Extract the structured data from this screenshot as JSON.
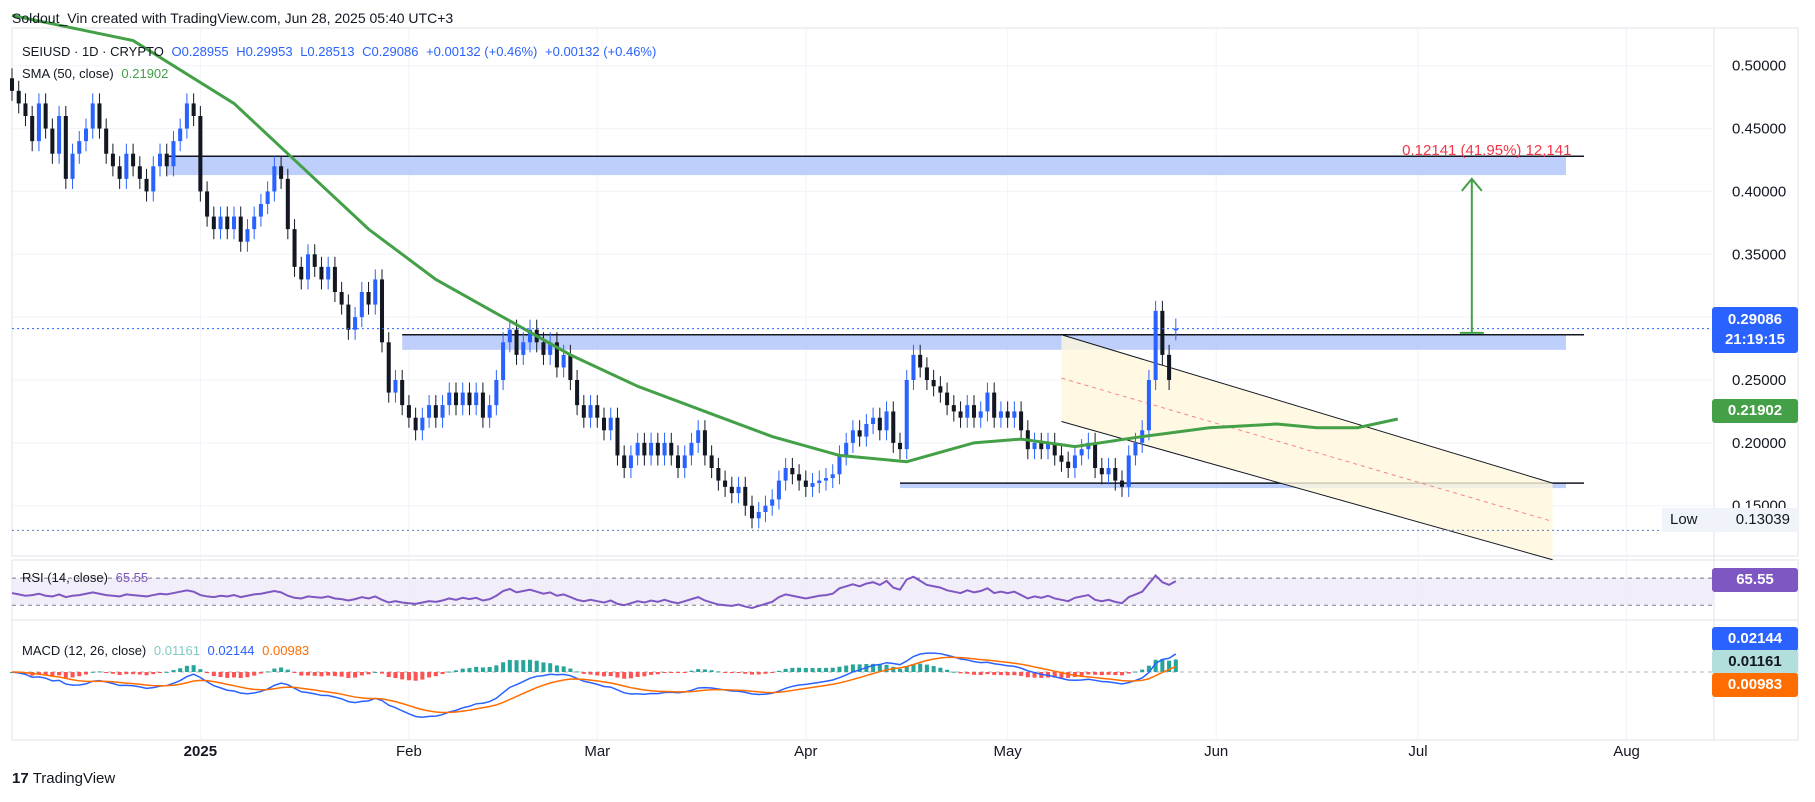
{
  "header": {
    "caption": "Soldout_Vin created with TradingView.com, Jun 28, 2025 05:40 UTC+3"
  },
  "symbol": {
    "title": "SEIUSD · 1D · CRYPTO",
    "open": "O0.28955",
    "high": "H0.29953",
    "low": "L0.28513",
    "close": "C0.29086",
    "change1": "+0.00132 (+0.46%)",
    "change2": "+0.00132 (+0.46%)"
  },
  "sma_legend": {
    "label": "SMA (50, close)",
    "value": "0.21902"
  },
  "rsi_legend": {
    "label": "RSI (14, close)",
    "value": "65.55"
  },
  "macd_legend": {
    "label": "MACD (12, 26, close)",
    "v1": "0.01161",
    "v2": "0.02144",
    "v3": "0.00983"
  },
  "price_badges": {
    "last": "0.29086",
    "countdown": "21:19:15",
    "sma": "0.21902",
    "low_label": "Low",
    "low_value": "0.13039"
  },
  "rsi_badge": "65.55",
  "macd_badges": {
    "macd": "0.02144",
    "hist": "0.01161",
    "signal": "0.00983"
  },
  "measure_label": "0.12141 (41.95%) 12,141",
  "brand": "TradingView",
  "colors": {
    "up": "#2962ff",
    "down": "#131722",
    "sma": "#43a047",
    "rsi": "#7e57c2",
    "macd": "#2962ff",
    "signal": "#ff6d00",
    "zone": "#b3c7fb",
    "measure_text": "#f23645",
    "measure_arrow": "#43a047"
  },
  "chart_data": {
    "type": "candlestick",
    "title": "SEIUSD · 1D · CRYPTO",
    "ylim": [
      0.11,
      0.53
    ],
    "y_ticks": [
      "0.50000",
      "0.45000",
      "0.40000",
      "0.35000",
      "0.30000",
      "0.25000",
      "0.20000",
      "0.15000"
    ],
    "y_tick_values": [
      0.5,
      0.45,
      0.4,
      0.35,
      0.3,
      0.25,
      0.2,
      0.15
    ],
    "x_labels": [
      "2025",
      "Feb",
      "Mar",
      "Apr",
      "May",
      "Jun",
      "Jul",
      "Aug"
    ],
    "x_label_days": [
      0,
      31,
      59,
      90,
      120,
      151,
      181,
      212
    ],
    "first_day": -28,
    "closes": [
      0.48,
      0.47,
      0.46,
      0.44,
      0.47,
      0.45,
      0.43,
      0.46,
      0.41,
      0.43,
      0.44,
      0.45,
      0.47,
      0.45,
      0.43,
      0.42,
      0.41,
      0.43,
      0.42,
      0.41,
      0.4,
      0.42,
      0.43,
      0.42,
      0.44,
      0.45,
      0.47,
      0.46,
      0.4,
      0.38,
      0.37,
      0.38,
      0.37,
      0.38,
      0.36,
      0.37,
      0.38,
      0.39,
      0.4,
      0.42,
      0.41,
      0.37,
      0.34,
      0.33,
      0.35,
      0.34,
      0.33,
      0.34,
      0.32,
      0.31,
      0.29,
      0.3,
      0.32,
      0.31,
      0.33,
      0.28,
      0.24,
      0.25,
      0.23,
      0.22,
      0.21,
      0.22,
      0.23,
      0.22,
      0.23,
      0.24,
      0.23,
      0.24,
      0.23,
      0.24,
      0.22,
      0.23,
      0.25,
      0.28,
      0.29,
      0.27,
      0.28,
      0.29,
      0.28,
      0.27,
      0.28,
      0.26,
      0.27,
      0.25,
      0.23,
      0.22,
      0.23,
      0.22,
      0.21,
      0.22,
      0.19,
      0.18,
      0.19,
      0.2,
      0.19,
      0.2,
      0.19,
      0.2,
      0.19,
      0.18,
      0.19,
      0.2,
      0.21,
      0.19,
      0.18,
      0.17,
      0.165,
      0.16,
      0.165,
      0.15,
      0.14,
      0.145,
      0.15,
      0.155,
      0.17,
      0.18,
      0.175,
      0.17,
      0.165,
      0.168,
      0.17,
      0.172,
      0.175,
      0.19,
      0.2,
      0.21,
      0.205,
      0.215,
      0.22,
      0.21,
      0.225,
      0.2,
      0.195,
      0.25,
      0.27,
      0.26,
      0.25,
      0.245,
      0.24,
      0.23,
      0.225,
      0.22,
      0.23,
      0.22,
      0.225,
      0.24,
      0.22,
      0.225,
      0.22,
      0.225,
      0.21,
      0.195,
      0.2,
      0.195,
      0.2,
      0.19,
      0.185,
      0.18,
      0.19,
      0.195,
      0.2,
      0.18,
      0.175,
      0.18,
      0.17,
      0.165,
      0.19,
      0.2,
      0.21,
      0.25,
      0.305,
      0.27,
      0.25,
      0.29086
    ],
    "opens": [
      0.49,
      0.48,
      0.47,
      0.46,
      0.44,
      0.47,
      0.45,
      0.43,
      0.46,
      0.41,
      0.43,
      0.44,
      0.45,
      0.47,
      0.45,
      0.43,
      0.42,
      0.41,
      0.43,
      0.42,
      0.41,
      0.4,
      0.42,
      0.43,
      0.42,
      0.44,
      0.45,
      0.47,
      0.46,
      0.4,
      0.38,
      0.37,
      0.38,
      0.37,
      0.38,
      0.36,
      0.37,
      0.38,
      0.39,
      0.4,
      0.42,
      0.41,
      0.37,
      0.34,
      0.33,
      0.35,
      0.34,
      0.33,
      0.34,
      0.32,
      0.31,
      0.29,
      0.3,
      0.32,
      0.31,
      0.33,
      0.28,
      0.24,
      0.25,
      0.23,
      0.22,
      0.21,
      0.22,
      0.23,
      0.22,
      0.23,
      0.24,
      0.23,
      0.24,
      0.23,
      0.24,
      0.22,
      0.23,
      0.25,
      0.28,
      0.29,
      0.27,
      0.28,
      0.29,
      0.28,
      0.27,
      0.28,
      0.26,
      0.27,
      0.25,
      0.23,
      0.22,
      0.23,
      0.22,
      0.21,
      0.22,
      0.19,
      0.18,
      0.19,
      0.2,
      0.19,
      0.2,
      0.19,
      0.2,
      0.19,
      0.18,
      0.19,
      0.2,
      0.21,
      0.19,
      0.18,
      0.17,
      0.165,
      0.16,
      0.165,
      0.15,
      0.14,
      0.145,
      0.15,
      0.155,
      0.17,
      0.18,
      0.175,
      0.17,
      0.165,
      0.168,
      0.17,
      0.172,
      0.175,
      0.19,
      0.2,
      0.21,
      0.205,
      0.215,
      0.22,
      0.21,
      0.225,
      0.2,
      0.195,
      0.25,
      0.27,
      0.26,
      0.25,
      0.245,
      0.24,
      0.23,
      0.225,
      0.22,
      0.23,
      0.22,
      0.225,
      0.24,
      0.22,
      0.225,
      0.22,
      0.225,
      0.21,
      0.195,
      0.2,
      0.195,
      0.2,
      0.19,
      0.185,
      0.18,
      0.19,
      0.195,
      0.2,
      0.18,
      0.175,
      0.18,
      0.17,
      0.165,
      0.19,
      0.2,
      0.21,
      0.25,
      0.305,
      0.27,
      0.28955
    ],
    "last_price": 0.29086,
    "sma50_points": [
      [
        -28,
        0.54
      ],
      [
        -10,
        0.52
      ],
      [
        5,
        0.47
      ],
      [
        15,
        0.42
      ],
      [
        25,
        0.37
      ],
      [
        35,
        0.33
      ],
      [
        45,
        0.3
      ],
      [
        55,
        0.27
      ],
      [
        65,
        0.245
      ],
      [
        75,
        0.225
      ],
      [
        85,
        0.205
      ],
      [
        95,
        0.19
      ],
      [
        105,
        0.185
      ],
      [
        115,
        0.2
      ],
      [
        122,
        0.203
      ],
      [
        130,
        0.197
      ],
      [
        140,
        0.205
      ],
      [
        150,
        0.212
      ],
      [
        160,
        0.215
      ],
      [
        166,
        0.212
      ],
      [
        172,
        0.212
      ],
      [
        178,
        0.21902
      ]
    ],
    "zones": [
      {
        "from_day": -5,
        "to_day": 203,
        "lo": 0.413,
        "hi": 0.428
      },
      {
        "from_day": 30,
        "to_day": 203,
        "lo": 0.274,
        "hi": 0.286
      },
      {
        "from_day": 104,
        "to_day": 203,
        "lo": 0.164,
        "hi": 0.168
      }
    ],
    "channel": {
      "upper": [
        [
          128,
          0.286
        ],
        [
          201,
          0.168
        ]
      ],
      "lower": [
        [
          128,
          0.217
        ],
        [
          201,
          0.107
        ]
      ]
    },
    "measure": {
      "day": 189,
      "from": 0.2875,
      "to": 0.41,
      "change": 0.12141,
      "change_pct": 41.95
    },
    "rsi": {
      "ylim": [
        20,
        85
      ],
      "upper_band": 70,
      "lower_band": 30,
      "last": 65.55,
      "values": [
        48,
        46,
        44,
        45,
        47,
        44,
        43,
        46,
        42,
        44,
        45,
        47,
        49,
        47,
        45,
        44,
        43,
        46,
        45,
        44,
        43,
        45,
        47,
        46,
        48,
        50,
        52,
        50,
        45,
        43,
        42,
        44,
        43,
        45,
        42,
        44,
        46,
        47,
        49,
        51,
        49,
        44,
        41,
        40,
        43,
        42,
        41,
        43,
        40,
        39,
        37,
        39,
        42,
        40,
        43,
        38,
        34,
        36,
        34,
        33,
        32,
        34,
        36,
        35,
        37,
        40,
        38,
        41,
        39,
        41,
        37,
        39,
        44,
        51,
        54,
        49,
        51,
        53,
        50,
        47,
        49,
        44,
        46,
        42,
        38,
        36,
        38,
        36,
        34,
        37,
        32,
        30,
        33,
        36,
        34,
        37,
        35,
        38,
        35,
        33,
        36,
        39,
        42,
        37,
        34,
        31,
        30,
        29,
        31,
        28,
        26,
        29,
        32,
        35,
        42,
        46,
        44,
        42,
        40,
        42,
        44,
        45,
        47,
        55,
        58,
        61,
        58,
        62,
        64,
        60,
        66,
        56,
        53,
        68,
        72,
        66,
        60,
        58,
        56,
        52,
        50,
        48,
        52,
        49,
        51,
        55,
        48,
        50,
        48,
        50,
        45,
        40,
        43,
        41,
        44,
        40,
        38,
        36,
        41,
        43,
        45,
        38,
        36,
        38,
        35,
        33,
        42,
        46,
        50,
        62,
        74,
        64,
        60,
        65.55
      ]
    },
    "macd": {
      "ylim": [
        -0.045,
        0.03
      ],
      "last_macd": 0.02144,
      "last_signal": 0.00983,
      "last_hist": 0.01161
    }
  }
}
